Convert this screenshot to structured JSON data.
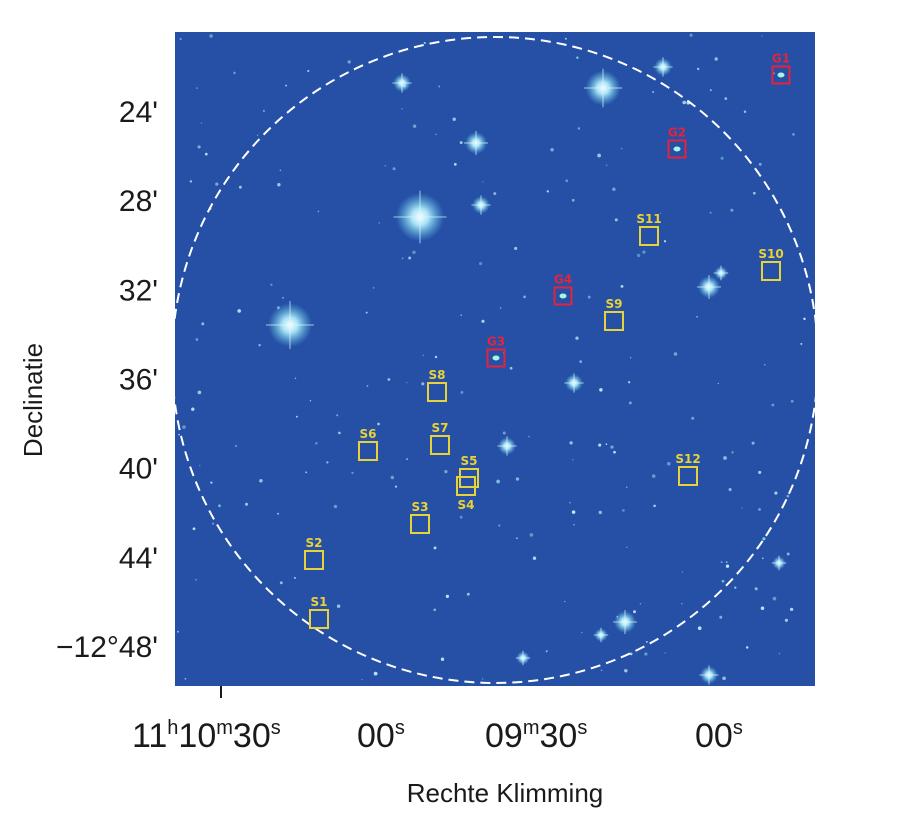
{
  "map": {
    "y_axis_title": "Declinatie",
    "x_axis_title": "Rechte Klimming",
    "dec_ticks": [
      {
        "value": -12.4,
        "label": "24'"
      },
      {
        "value": -12.4667,
        "label": "28'"
      },
      {
        "value": -12.5333,
        "label": "32'"
      },
      {
        "value": -12.6,
        "label": "36'"
      },
      {
        "value": -12.6667,
        "label": "40'"
      },
      {
        "value": -12.7333,
        "label": "44'"
      },
      {
        "value": -12.8,
        "label": "−12°48'"
      }
    ],
    "ra_ticks": [
      {
        "label": "11h10m30s",
        "h": "11",
        "m": "10",
        "s": "30"
      },
      {
        "label": "00s",
        "s": "00"
      },
      {
        "label": "09m30s",
        "m": "09",
        "s": "30"
      },
      {
        "label": "00s",
        "s": "00"
      }
    ],
    "colors": {
      "field_background": "#2650a6",
      "circle": "#ffffff",
      "galaxy_marker": "#e3243c",
      "star_marker": "#e8d23a"
    },
    "markers": [
      {
        "label": "G1",
        "type": "galaxy"
      },
      {
        "label": "G2",
        "type": "galaxy"
      },
      {
        "label": "G3",
        "type": "galaxy"
      },
      {
        "label": "G4",
        "type": "galaxy"
      },
      {
        "label": "S1",
        "type": "star"
      },
      {
        "label": "S2",
        "type": "star"
      },
      {
        "label": "S3",
        "type": "star"
      },
      {
        "label": "S4",
        "type": "star"
      },
      {
        "label": "S5",
        "type": "star"
      },
      {
        "label": "S6",
        "type": "star"
      },
      {
        "label": "S7",
        "type": "star"
      },
      {
        "label": "S8",
        "type": "star"
      },
      {
        "label": "S9",
        "type": "star"
      },
      {
        "label": "S10",
        "type": "star"
      },
      {
        "label": "S11",
        "type": "star"
      },
      {
        "label": "S12",
        "type": "star"
      }
    ]
  }
}
